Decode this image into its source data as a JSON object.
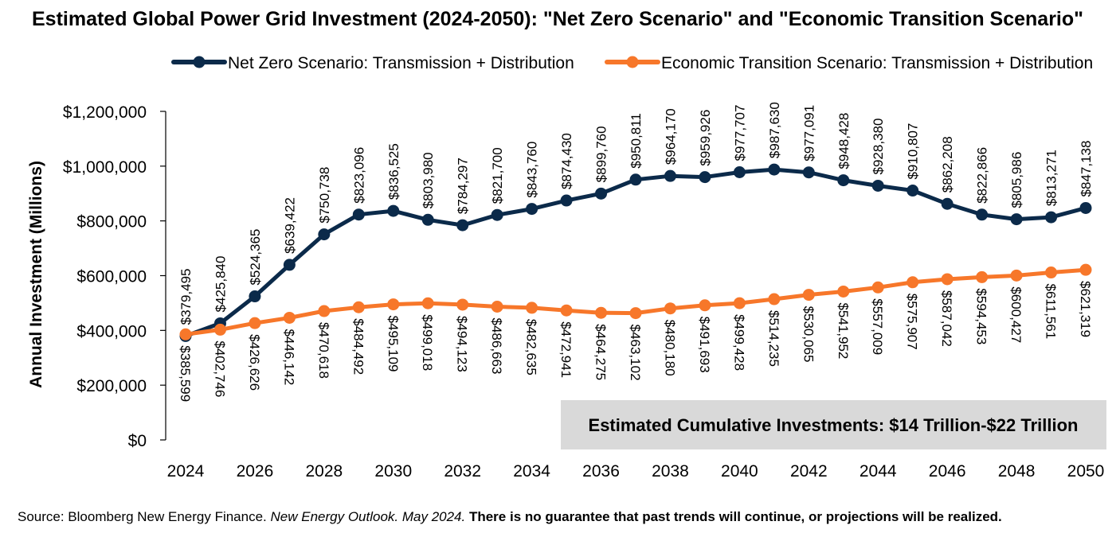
{
  "chart_data": {
    "type": "line",
    "title": "Estimated Global Power Grid Investment (2024-2050): \"Net Zero Scenario\" and \"Economic Transition Scenario\"",
    "ylabel": "Annual Investment (Millions)",
    "xlabel": "",
    "ylim": [
      0,
      1200000
    ],
    "xlim": [
      2024,
      2050
    ],
    "yticks": [
      0,
      200000,
      400000,
      600000,
      800000,
      1000000,
      1200000
    ],
    "ytick_labels": [
      "$0",
      "$200,000",
      "$400,000",
      "$600,000",
      "$800,000",
      "$1,000,000",
      "$1,200,000"
    ],
    "xticks": [
      2024,
      2026,
      2028,
      2030,
      2032,
      2034,
      2036,
      2038,
      2040,
      2042,
      2044,
      2046,
      2048,
      2050
    ],
    "xtick_labels": [
      "2024",
      "2026",
      "2028",
      "2030",
      "2032",
      "2034",
      "2036",
      "2038",
      "2040",
      "2042",
      "2044",
      "2046",
      "2048",
      "2050"
    ],
    "grid": false,
    "legend_position": "top",
    "x": [
      2024,
      2025,
      2026,
      2027,
      2028,
      2029,
      2030,
      2031,
      2032,
      2033,
      2034,
      2035,
      2036,
      2037,
      2038,
      2039,
      2040,
      2041,
      2042,
      2043,
      2044,
      2045,
      2046,
      2047,
      2048,
      2049,
      2050
    ],
    "series": [
      {
        "name": "Net Zero Scenario: Transmission + Distribution",
        "color": "#0b2a4a",
        "values": [
          379495,
          425840,
          524365,
          639422,
          750738,
          823096,
          836525,
          803980,
          784297,
          821700,
          843760,
          874430,
          899760,
          950811,
          964170,
          959926,
          977707,
          987630,
          977091,
          948428,
          928380,
          910807,
          862208,
          822866,
          805986,
          813271,
          847138
        ],
        "labels": [
          "$379,495",
          "$425,840",
          "$524,365",
          "$639,422",
          "$750,738",
          "$823,096",
          "$836,525",
          "$803,980",
          "$784,297",
          "$821,700",
          "$843,760",
          "$874,430",
          "$899,760",
          "$950,811",
          "$964,170",
          "$959,926",
          "$977,707",
          "$987,630",
          "$977,091",
          "$948,428",
          "$928,380",
          "$910,807",
          "$862,208",
          "$822,866",
          "$805,986",
          "$813,271",
          "$847,138"
        ]
      },
      {
        "name": "Economic Transition Scenario: Transmission + Distribution",
        "color": "#f7772a",
        "values": [
          385599,
          402746,
          426626,
          446142,
          470618,
          484492,
          495109,
          499018,
          494123,
          486663,
          482635,
          472941,
          464275,
          463102,
          480180,
          491693,
          499428,
          514235,
          530065,
          541952,
          557009,
          575907,
          587042,
          594453,
          600427,
          611561,
          621319
        ],
        "labels": [
          "$385,599",
          "$402,746",
          "$426,626",
          "$446,142",
          "$470,618",
          "$484,492",
          "$495,109",
          "$499,018",
          "$494,123",
          "$486,663",
          "$482,635",
          "$472,941",
          "$464,275",
          "$463,102",
          "$480,180",
          "$491,693",
          "$499,428",
          "$514,235",
          "$530,065",
          "$541,952",
          "$557,009",
          "$575,907",
          "$587,042",
          "$594,453",
          "$600,427",
          "$611,561",
          "$621,319"
        ]
      }
    ],
    "annotation": "Estimated Cumulative Investments: $14 Trillion-$22 Trillion",
    "annotation_bg": "#d9d9d9"
  },
  "footer": {
    "source_prefix": "Source:  Bloomberg New Energy Finance. ",
    "source_italic": "New Energy Outlook.  May 2024.",
    "disclaimer": " There is no guarantee that past trends will continue, or projections will be realized."
  }
}
